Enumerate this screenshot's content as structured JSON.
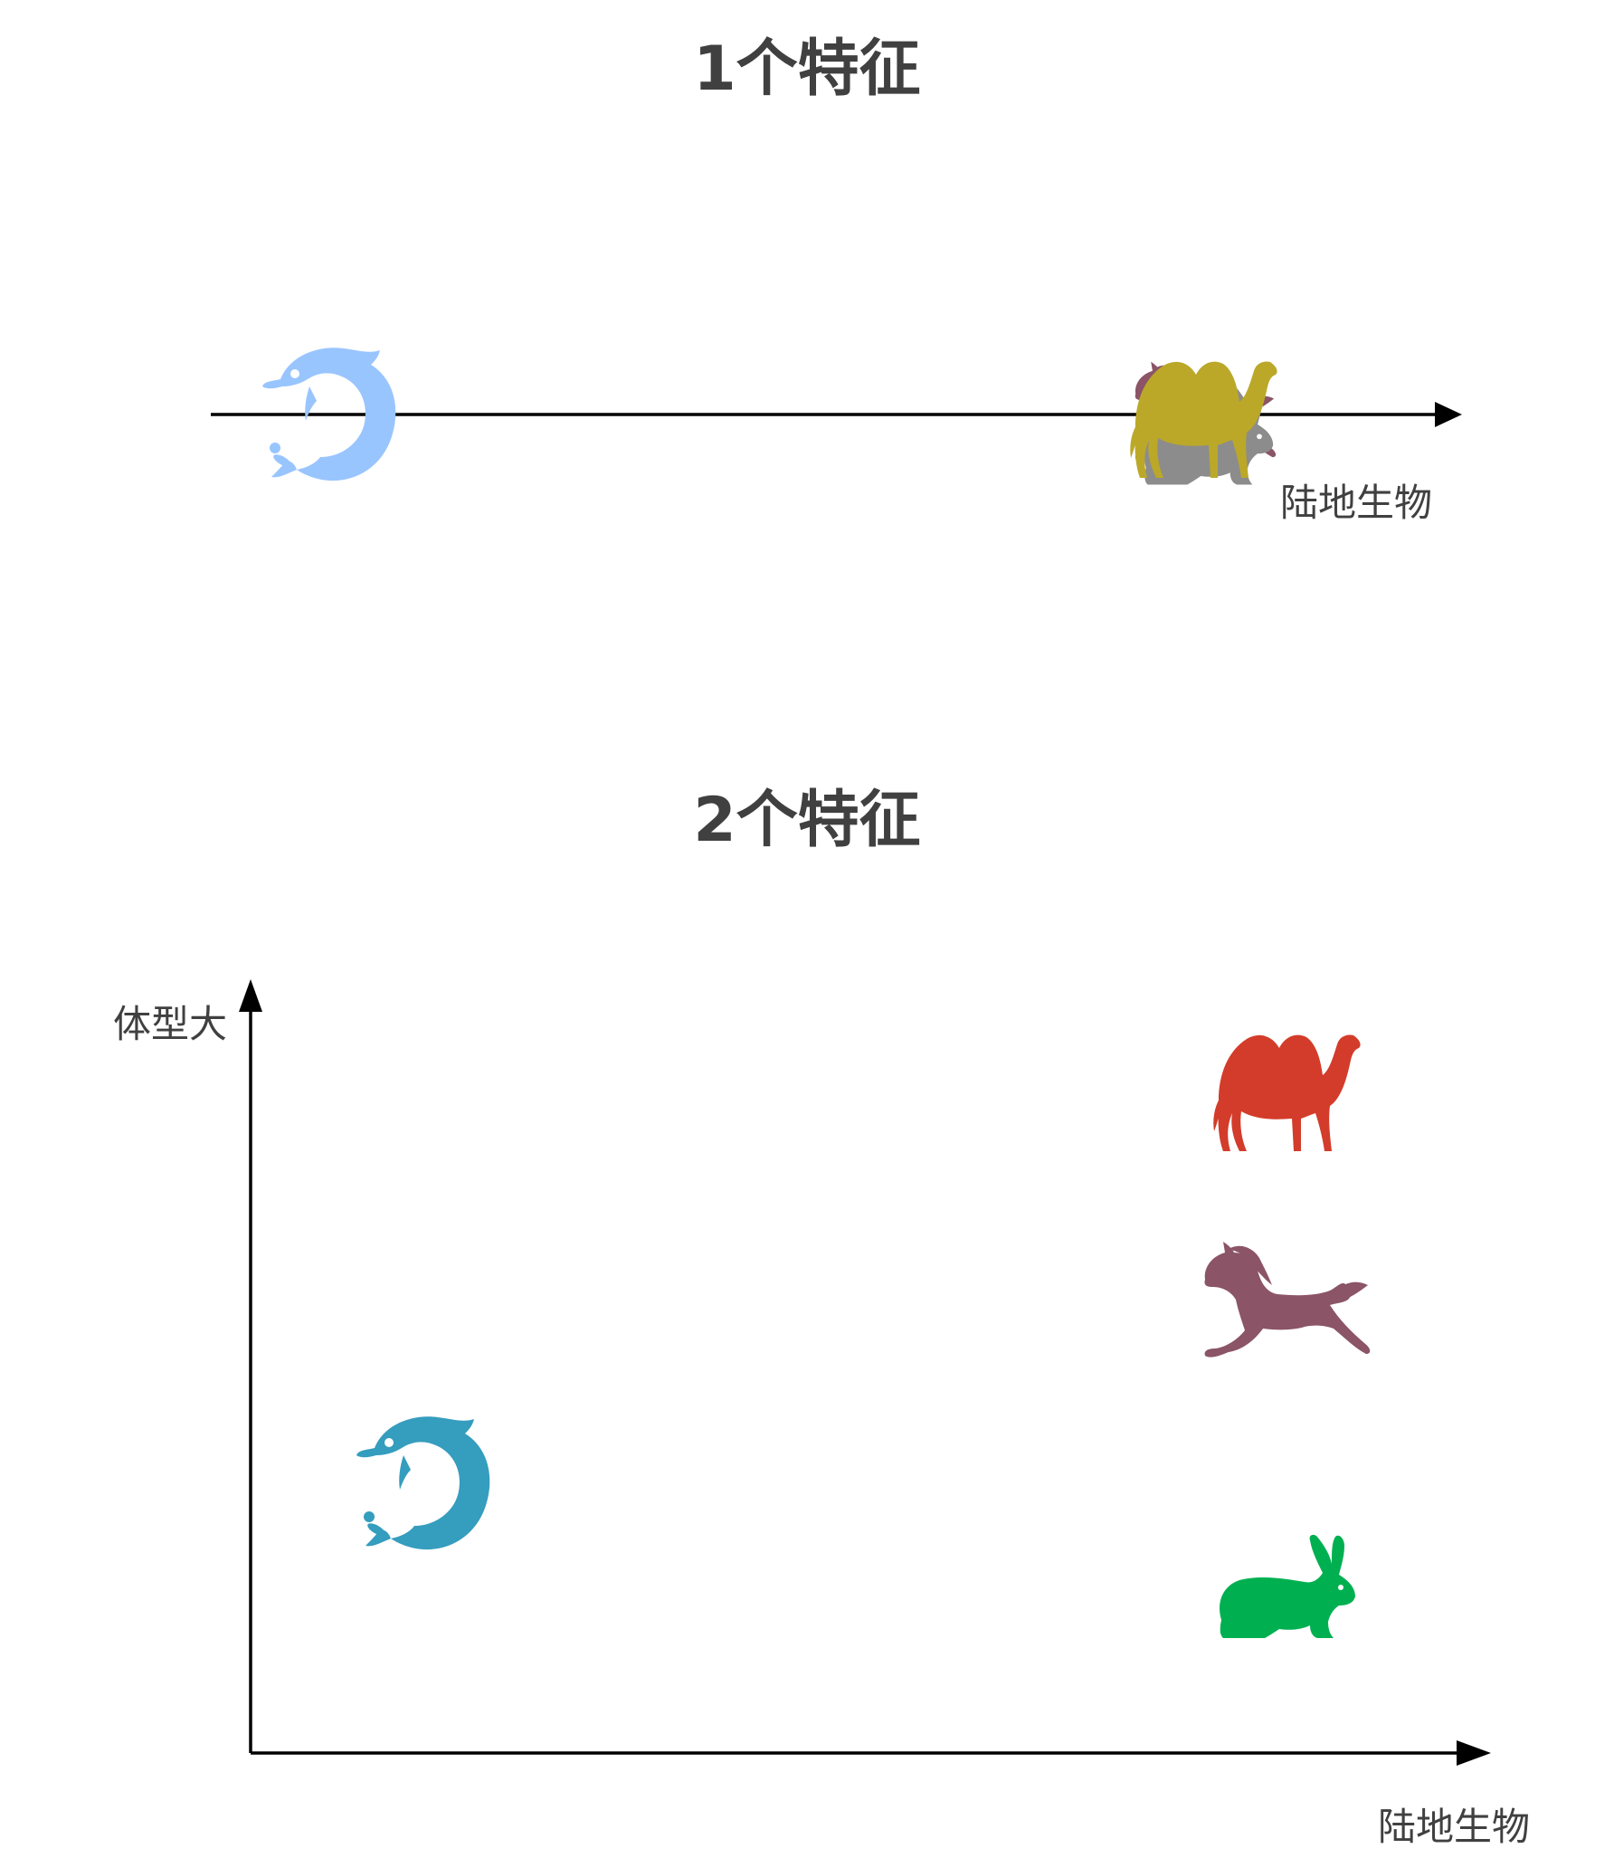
{
  "section1": {
    "title": "1个特征",
    "x_axis_label": "陆地生物",
    "animals": [
      {
        "name": "dolphin",
        "color": "#99c5ff"
      },
      {
        "name": "horse",
        "color": "#8b5467"
      },
      {
        "name": "rabbit",
        "color": "#8c8c8c"
      },
      {
        "name": "camel",
        "color": "#bba829"
      }
    ]
  },
  "section2": {
    "title": "2个特征",
    "x_axis_label": "陆地生物",
    "y_axis_label": "体型大",
    "animals": [
      {
        "name": "dolphin",
        "color": "#359dbe"
      },
      {
        "name": "camel",
        "color": "#d33c2a"
      },
      {
        "name": "horse",
        "color": "#8b5467"
      },
      {
        "name": "rabbit",
        "color": "#00b050"
      }
    ]
  }
}
